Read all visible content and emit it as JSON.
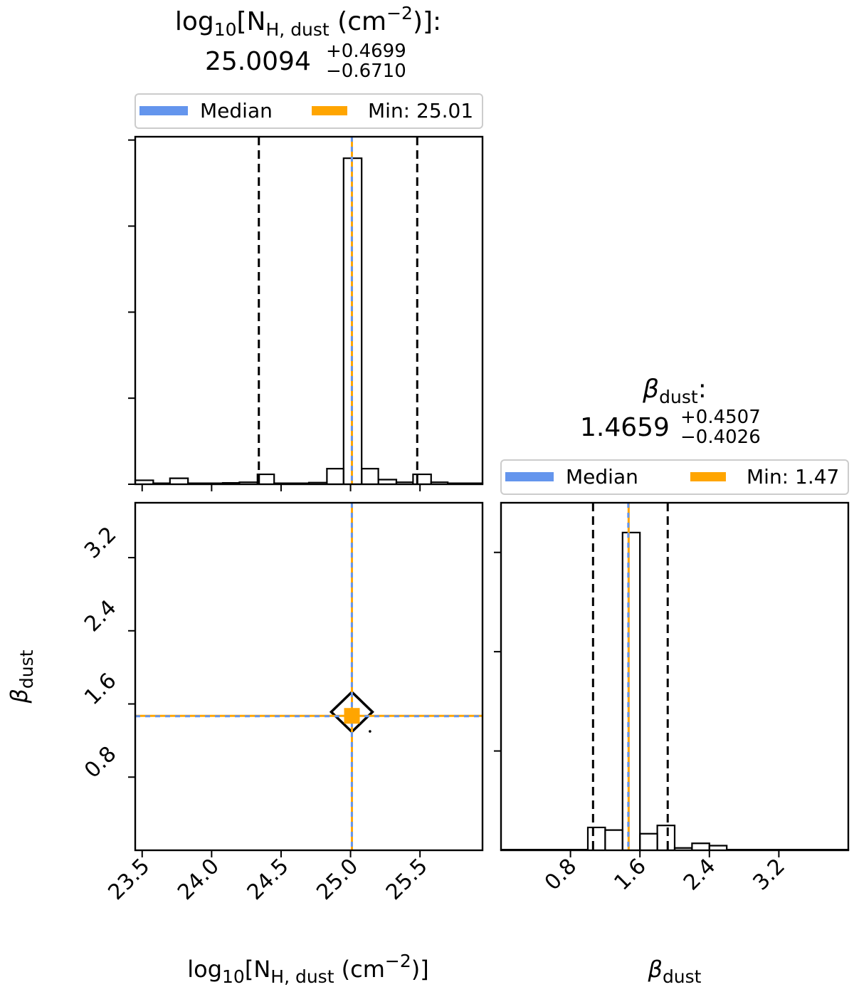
{
  "colors": {
    "median": "#6495ED",
    "min": "#FFA500",
    "hist": "#000000",
    "quantile": "#000000"
  },
  "chart_data": [
    {
      "type": "histogram",
      "panel": "top-left",
      "title": {
        "base": "log",
        "sub": "10",
        "open": "[N",
        "sub2": "H, dust",
        "unit": " (cm",
        "sup": "−2",
        "close": ")]:"
      },
      "value": {
        "main": "25.0094",
        "plus": "+0.4699",
        "minus": "−0.6710"
      },
      "legend": {
        "median_label": "Median",
        "min_label": "Min: 25.01",
        "placement": "top"
      },
      "xlim": [
        23.45,
        25.95
      ],
      "bin_edges": [
        23.45,
        23.58,
        23.7,
        23.83,
        23.95,
        24.08,
        24.2,
        24.33,
        24.45,
        24.58,
        24.7,
        24.83,
        24.95,
        25.08,
        25.2,
        25.33,
        25.45,
        25.58,
        25.7,
        25.83,
        25.95
      ],
      "counts": [
        0.012,
        0.003,
        0.018,
        0.003,
        0.003,
        0.004,
        0.006,
        0.03,
        0.003,
        0.003,
        0.005,
        0.047,
        0.985,
        0.047,
        0.014,
        0.006,
        0.03,
        0.006,
        0.003,
        0.003
      ],
      "ylim": [
        0,
        1.05
      ],
      "quantiles": [
        24.34,
        25.48
      ],
      "median": 25.0094,
      "min": 25.01
    },
    {
      "type": "histogram",
      "panel": "bottom-right",
      "title": {
        "beta": "β",
        "sub": "dust",
        "colon": ":"
      },
      "value": {
        "main": "1.4659",
        "plus": "+0.4507",
        "minus": "−0.4026"
      },
      "legend": {
        "median_label": "Median",
        "min_label": "Min: 1.47",
        "placement": "top"
      },
      "xlim": [
        0.0,
        4.0
      ],
      "xticks": [
        0.8,
        1.6,
        2.4,
        3.2
      ],
      "xtick_labels": [
        "0.8",
        "1.6",
        "2.4",
        "3.2"
      ],
      "xlabel": {
        "beta": "β",
        "sub": "dust"
      },
      "bin_edges": [
        0.0,
        0.2,
        0.4,
        0.6,
        0.8,
        1.0,
        1.2,
        1.4,
        1.6,
        1.8,
        2.0,
        2.2,
        2.4,
        2.6,
        2.8,
        3.0,
        3.2,
        3.4,
        3.6,
        3.8,
        4.0
      ],
      "counts": [
        0.002,
        0.002,
        0.002,
        0.002,
        0.002,
        0.069,
        0.061,
        0.96,
        0.05,
        0.075,
        0.007,
        0.021,
        0.014,
        0.002,
        0.002,
        0.002,
        0.002,
        0.002,
        0.002,
        0.002
      ],
      "ylim": [
        0,
        1.05
      ],
      "quantiles": [
        1.06,
        1.92
      ],
      "median": 1.4659,
      "min": 1.47
    },
    {
      "type": "scatter",
      "panel": "bottom-left",
      "xlim": [
        23.45,
        25.95
      ],
      "ylim": [
        0.0,
        3.8
      ],
      "xticks": [
        23.5,
        24.0,
        24.5,
        25.0,
        25.5
      ],
      "xtick_labels": [
        "23.5",
        "24.0",
        "24.5",
        "25.0",
        "25.5"
      ],
      "yticks": [
        0.8,
        1.6,
        2.4,
        3.2
      ],
      "ytick_labels": [
        "0.8",
        "1.6",
        "2.4",
        "3.2"
      ],
      "xlabel": {
        "base": "log",
        "sub": "10",
        "open": "[N",
        "sub2": "H, dust",
        "unit": " (cm",
        "sup": "−2",
        "close": ")]"
      },
      "ylabel": {
        "beta": "β",
        "sub": "dust"
      },
      "median_point": {
        "x": 25.0094,
        "y": 1.4659
      },
      "min_point": {
        "x": 25.01,
        "y": 1.47
      },
      "outlier": {
        "x": 25.14,
        "y": 1.3
      }
    }
  ]
}
